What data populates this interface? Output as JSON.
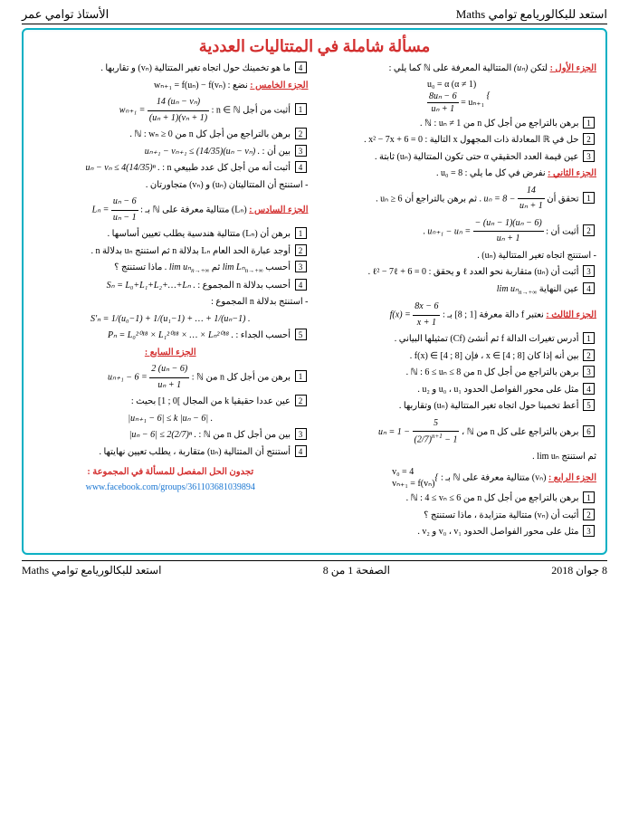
{
  "header": {
    "left": "استعد للبكالوريامع توامي Maths",
    "right": "الأستاذ توامي عمر"
  },
  "title": "مسألة شاملة في المتتاليات العددية",
  "parts": {
    "p1": "الجزء الأول :",
    "p2": "الجزء الثاني :",
    "p3": "الجزء الثالث :",
    "p4": "الجزء الرابع :",
    "p5": "الجزء الخامس :",
    "p6": "الجزء السادس :",
    "p7": "الجزء السابع :"
  },
  "col1": {
    "l1a": "لتكن ",
    "l1b": " المتتالية المعرفة على ℕ كما يلي :",
    "f1_t1": "u₀ = α   (α ≠ 1)",
    "f1_t2": "uₙ₊₁ = ",
    "f1_fr_t": "8uₙ − 6",
    "f1_fr_b": "uₙ + 1",
    "q1": " برهن بالتراجع من أجل كل n من ℕ : uₙ ≠ 1 .",
    "q2": " حل في ℝ المعادلة ذات المجهول x التالية : x² − 7x + 6 = 0 .",
    "q3": " عين قيمة العدد الحقيقي α حتى تكون المتتالية (uₙ) ثابتة .",
    "p2intro": "نفرض في كل ما يلي : u₀ = 8 .",
    "p2q1a": " تحقق أن ",
    "p2q1_eq": "uₙ = 8 − ",
    "p2q1_fr_t": "14",
    "p2q1_fr_b": "uₙ + 1",
    "p2q1b": " . ثم برهن بالتراجع أن uₙ ≥ 6 .",
    "p2q2a": " أثبت أن : ",
    "p2q2_fr_t": "− (uₙ − 1)(uₙ − 6)",
    "p2q2_fr_b": "uₙ + 1",
    "p2q2_lhs": "uₙ₊₁ − uₙ = ",
    "p2q2b": "- استنتج اتجاه تغير المتتالية (uₙ) .",
    "p2q3": " أثبت أن (uₙ) متقاربة نحو العدد ℓ و يحقق : ℓ² − 7ℓ + 6 = 0 .",
    "p2q4": " عين النهاية ",
    "p2q4_lim": "lim uₙ",
    "p2q4_sub": "n→+∞",
    "p3intro_a": "نعتبر f دالة معرفة [1 ; 8] بـ : ",
    "p3_fr_t": "8x − 6",
    "p3_fr_b": "x + 1",
    "p3_lhs": "f(x) = ",
    "p3q1": " أدرس تغيرات الدالة f ثم أنشئ (Cf) تمثيلها البياني .",
    "p3q2": " بين أنه إذا كان x ∈ [4 ; 8] ، فإن f(x) ∈ [4 ; 8] .",
    "p3q3": " برهن بالتراجع من أجل كل n من ℕ : 6 ≤ uₙ ≤ 8 .",
    "p3q4": " مثل على محور الفواصل الحدود u₀ ، u₁ و u₂ .",
    "p3q5": " أعط تخمينا حول اتجاه تغير المتتالية (uₙ) وتقاربها .",
    "p3q6a": " برهن بالتراجع على كل n من ℕ ، ",
    "p3q6_lhs": "uₙ = 1 − ",
    "p3q6_fr_t": "5",
    "p3q6_fr_b1": "(2/7)",
    "p3q6_fr_b2": "n+1",
    "p3q6_fr_b3": " − 1",
    "p3q6b": "ثم استنتج lim uₙ .",
    "p4intro": "(vₙ) متتالية معرفة على ℕ بـ : ",
    "p4_br1": "v₀ = 4",
    "p4_br2": "vₙ₊₁ = f(vₙ)",
    "p4q1": " برهن بالتراجع من أجل كل n من ℕ : 4 ≤ vₙ ≤ 6 .",
    "p4q2": " أثبت أن (vₙ) متتالية متزايدة ، ماذا تستنتج ؟",
    "p4q3": " مثل على محور الفواصل الحدود v₀ ، v₁ و v₂ ."
  },
  "col2": {
    "c2l1": " ما هو تخمينك حول اتجاه تغير المتتالية (vₙ) و تقاربها .",
    "p5intro": "نضع : wₙ₊₁ = f(uₙ) − f(vₙ)",
    "p5q1a": " أثبت من أجل n ∈ ℕ : ",
    "p5q1_lhs": "wₙ₊₁ = ",
    "p5q1_fr_t": "14 (uₙ − vₙ)",
    "p5q1_fr_b": "(uₙ + 1)(vₙ + 1)",
    "p5q2": " برهن بالتراجع من أجل كل n من ℕ : wₙ ≥ 0 .",
    "p5q3a": " بين أن : ",
    "p5q3_eq": "uₙ₊₁ − vₙ₊₁ ≤ (14/35)(uₙ − vₙ) .",
    "p5q4a": " أثبت أنه من أجل كل عدد طبيعي n : ",
    "p5q4_eq": "uₙ − vₙ ≤ 4(14/35)ⁿ .",
    "p5q4b": "- استنتج أن المتتاليتان (uₙ) و (vₙ) متجاورتان .",
    "p6intro_a": "(Lₙ) متتالية معرفة على ℕ بـ : ",
    "p6_fr_t": "uₙ − 6",
    "p6_fr_b": "uₙ − 1",
    "p6_lhs": "Lₙ = ",
    "p6q1": " برهن أن (Lₙ) متتالية هندسية يطلب تعيين أساسها .",
    "p6q2": " أوجد عبارة الحد العام Lₙ بدلالة n ثم استنتج uₙ بدلالة n .",
    "p6q3a": " أحسب ",
    "p6q3_l1": "lim Lₙ",
    "p6q3_b": " ثم ",
    "p6q3_l2": "lim uₙ",
    "p6q3_sub": "n→+∞",
    "p6q3_c": " . ماذا تستنتج ؟",
    "p6q4a": " أحسب بدلالة n المجموع : ",
    "p6q4_eq": "Sₙ = L₀+L₁+L₂+…+Lₙ .",
    "p6q4b": "- استنتج بدلالة n المجموع :",
    "p6q4_s": "S'ₙ = 1/(u₀−1) + 1/(u₁−1) + … + 1/(uₙ−1) .",
    "p6q5a": " أحسب الجداء : ",
    "p6q5_eq": "Pₙ = L₀²⁰¹⁸ × L₁²⁰¹⁸ × … × Lₙ²⁰¹⁸ .",
    "p7q1a": " برهن من أجل كل n من ℕ : ",
    "p7q1_lhs": "uₙ₊₁ − 6 = ",
    "p7q1_fr_t": "2 (uₙ − 6)",
    "p7q1_fr_b": "uₙ + 1",
    "p7q2": " عين عددا حقيقيا k من المجال ]0 ; 1] بحيث :",
    "p7q2_eq": "|uₙ₊₁ − 6| ≤ k |uₙ − 6| .",
    "p7q3a": " بين من أجل كل n من ℕ : ",
    "p7q3_eq": "|uₙ − 6| ≤ 2(2/7)ⁿ .",
    "p7q4": " أستنتج أن المتتالية (uₙ) متقاربة ، يطلب تعيين نهايتها ."
  },
  "link": {
    "txt": "تجدون الحل المفصل للمسألة في المجموعة :",
    "url": "www.facebook.com/groups/361103681039894"
  },
  "footer": {
    "left": "8 جوان 2018",
    "center": "الصفحة 1 من 8",
    "right": "استعد للبكالوريامع توامي Maths"
  }
}
